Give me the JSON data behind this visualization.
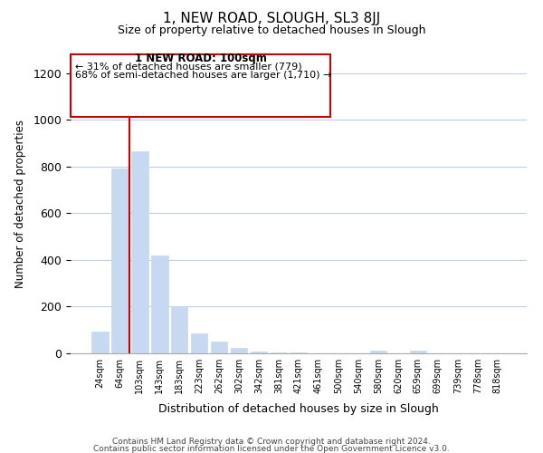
{
  "title": "1, NEW ROAD, SLOUGH, SL3 8JJ",
  "subtitle": "Size of property relative to detached houses in Slough",
  "xlabel": "Distribution of detached houses by size in Slough",
  "ylabel": "Number of detached properties",
  "bar_labels": [
    "24sqm",
    "64sqm",
    "103sqm",
    "143sqm",
    "183sqm",
    "223sqm",
    "262sqm",
    "302sqm",
    "342sqm",
    "381sqm",
    "421sqm",
    "461sqm",
    "500sqm",
    "540sqm",
    "580sqm",
    "620sqm",
    "659sqm",
    "699sqm",
    "739sqm",
    "778sqm",
    "818sqm"
  ],
  "bar_values": [
    95,
    790,
    865,
    420,
    200,
    85,
    52,
    22,
    8,
    4,
    2,
    1,
    0,
    0,
    10,
    0,
    10,
    0,
    0,
    0,
    0
  ],
  "bar_color": "#c6d9f1",
  "highlight_bar_index": 2,
  "highlight_line_color": "#cc0000",
  "ylim": [
    0,
    1280
  ],
  "yticks": [
    0,
    200,
    400,
    600,
    800,
    1000,
    1200
  ],
  "annotation_title": "1 NEW ROAD: 100sqm",
  "annotation_line1": "← 31% of detached houses are smaller (779)",
  "annotation_line2": "68% of semi-detached houses are larger (1,710) →",
  "annotation_box_color": "#ffffff",
  "annotation_box_edgecolor": "#cc0000",
  "footer_line1": "Contains HM Land Registry data © Crown copyright and database right 2024.",
  "footer_line2": "Contains public sector information licensed under the Open Government Licence v3.0.",
  "background_color": "#ffffff",
  "grid_color": "#c0cfe8"
}
